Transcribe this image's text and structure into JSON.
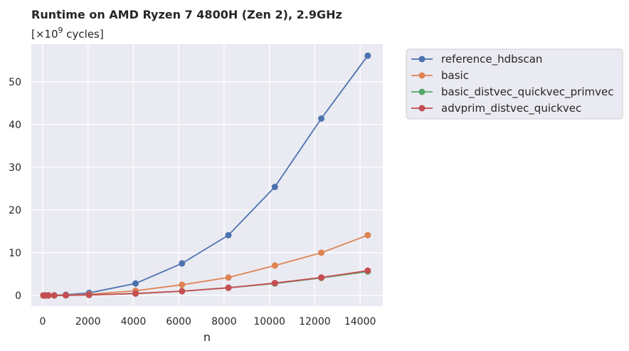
{
  "chart_data": {
    "type": "line",
    "title": "Runtime on AMD Ryzen 7 4800H (Zen 2),  2.9GHz",
    "subtitle_prefix": " [×10",
    "subtitle_exponent": "9",
    "subtitle_suffix": " cycles]",
    "xlabel": "n",
    "ylabel": "",
    "xlim": [
      -500,
      15000
    ],
    "ylim": [
      -2.5,
      58.8
    ],
    "x_ticks": [
      0,
      2000,
      4000,
      6000,
      8000,
      10000,
      12000,
      14000
    ],
    "y_ticks": [
      0,
      10,
      20,
      30,
      40,
      50
    ],
    "grid": true,
    "legend_position": "outside-right-top",
    "x": [
      32,
      64,
      128,
      256,
      512,
      1024,
      2048,
      4096,
      6144,
      8192,
      10240,
      12288,
      14336
    ],
    "series": [
      {
        "name": "reference_hdbscan",
        "color": "#4c72b0",
        "values": [
          0.0,
          0.0,
          0.0,
          0.01,
          0.04,
          0.17,
          0.6,
          2.8,
          7.5,
          14.1,
          25.4,
          41.4,
          56.1
        ]
      },
      {
        "name": "basic",
        "color": "#dd8452",
        "values": [
          0.0,
          0.0,
          0.0,
          0.0,
          0.02,
          0.07,
          0.27,
          1.1,
          2.5,
          4.2,
          7.0,
          10.0,
          14.1
        ]
      },
      {
        "name": "basic_distvec_quickvec_primvec",
        "color": "#55a868",
        "values": [
          0.0,
          0.0,
          0.0,
          0.0,
          0.01,
          0.03,
          0.12,
          0.45,
          1.0,
          1.8,
          2.8,
          4.1,
          5.6
        ]
      },
      {
        "name": "advprim_distvec_quickvec",
        "color": "#c44e52",
        "values": [
          0.0,
          0.0,
          0.0,
          0.0,
          0.01,
          0.03,
          0.12,
          0.45,
          1.0,
          1.8,
          2.9,
          4.2,
          5.8
        ]
      }
    ]
  }
}
